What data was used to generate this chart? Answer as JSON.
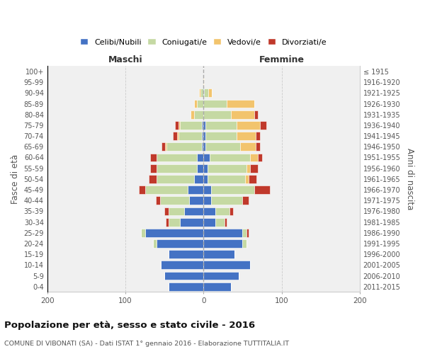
{
  "age_groups": [
    "0-4",
    "5-9",
    "10-14",
    "15-19",
    "20-24",
    "25-29",
    "30-34",
    "35-39",
    "40-44",
    "45-49",
    "50-54",
    "55-59",
    "60-64",
    "65-69",
    "70-74",
    "75-79",
    "80-84",
    "85-89",
    "90-94",
    "95-99",
    "100+"
  ],
  "birth_years": [
    "2011-2015",
    "2006-2010",
    "2001-2005",
    "1996-2000",
    "1991-1995",
    "1986-1990",
    "1981-1985",
    "1976-1980",
    "1971-1975",
    "1966-1970",
    "1961-1965",
    "1956-1960",
    "1951-1955",
    "1946-1950",
    "1941-1945",
    "1936-1940",
    "1931-1935",
    "1926-1930",
    "1921-1925",
    "1916-1920",
    "≤ 1915"
  ],
  "maschi": {
    "celibi": [
      45,
      50,
      55,
      45,
      60,
      75,
      30,
      25,
      18,
      20,
      12,
      8,
      8,
      2,
      2,
      2,
      0,
      0,
      0,
      0,
      0
    ],
    "coniugati": [
      0,
      0,
      0,
      0,
      5,
      5,
      15,
      20,
      38,
      55,
      48,
      52,
      52,
      45,
      30,
      28,
      12,
      8,
      4,
      0,
      0
    ],
    "vedovi": [
      0,
      0,
      0,
      0,
      0,
      0,
      0,
      0,
      0,
      0,
      0,
      0,
      0,
      2,
      2,
      2,
      5,
      4,
      2,
      0,
      0
    ],
    "divorziati": [
      0,
      0,
      0,
      0,
      0,
      0,
      3,
      5,
      5,
      8,
      10,
      8,
      8,
      5,
      5,
      5,
      0,
      0,
      0,
      0,
      0
    ]
  },
  "femmine": {
    "nubili": [
      35,
      45,
      60,
      40,
      50,
      50,
      15,
      15,
      10,
      10,
      5,
      5,
      8,
      2,
      2,
      2,
      0,
      0,
      1,
      0,
      0
    ],
    "coniugate": [
      0,
      0,
      0,
      0,
      5,
      5,
      12,
      18,
      40,
      55,
      48,
      50,
      52,
      45,
      40,
      40,
      35,
      30,
      5,
      0,
      0
    ],
    "vedove": [
      0,
      0,
      0,
      0,
      0,
      0,
      0,
      0,
      0,
      0,
      5,
      5,
      10,
      20,
      25,
      30,
      30,
      35,
      5,
      1,
      0
    ],
    "divorziate": [
      0,
      0,
      0,
      0,
      0,
      3,
      3,
      5,
      8,
      20,
      10,
      10,
      5,
      5,
      5,
      8,
      5,
      0,
      0,
      0,
      0
    ]
  },
  "colors": {
    "celibi": "#4472c4",
    "coniugati": "#c5d9a3",
    "vedovi": "#f2c46d",
    "divorziati": "#c0392b"
  },
  "xlim": 200,
  "title": "Popolazione per età, sesso e stato civile - 2016",
  "subtitle": "COMUNE DI VIBONATI (SA) - Dati ISTAT 1° gennaio 2016 - Elaborazione TUTTITALIA.IT",
  "xlabel_left": "Maschi",
  "xlabel_right": "Femmine",
  "ylabel": "Fasce di età",
  "ylabel_right": "Anni di nascita",
  "bg_color": "#f0f0f0",
  "legend_labels": [
    "Celibi/Nubili",
    "Coniugati/e",
    "Vedovi/e",
    "Divorziati/e"
  ]
}
